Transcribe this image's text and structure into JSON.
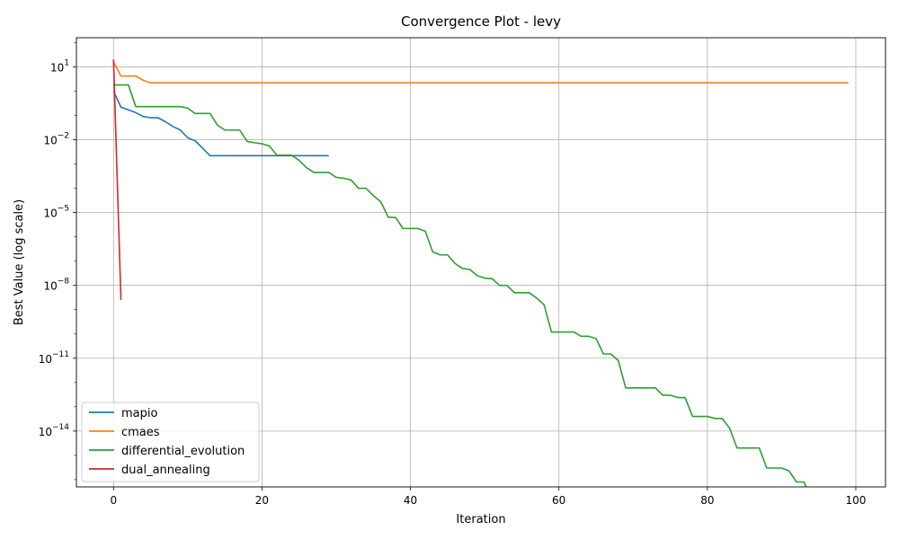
{
  "chart_data": {
    "type": "line",
    "title": "Convergence Plot - levy",
    "xlabel": "Iteration",
    "ylabel": "Best Value (log scale)",
    "yscale": "log",
    "xlim": [
      -5,
      104
    ],
    "ylim_log10": [
      -16.3,
      2.2
    ],
    "xticks": [
      0,
      20,
      40,
      60,
      80,
      100
    ],
    "xtick_labels": [
      "0",
      "20",
      "40",
      "60",
      "80",
      "100"
    ],
    "yticks_exp": [
      1,
      -2,
      -5,
      -8,
      -11,
      -14
    ],
    "ytick_labels": [
      "10^1",
      "10^−2",
      "10^−5",
      "10^−8",
      "10^−11",
      "10^−14"
    ],
    "grid": true,
    "legend_position": "lower-left",
    "series": [
      {
        "name": "mapio",
        "color": "#1f77b4",
        "x": [
          0,
          1,
          2,
          3,
          4,
          5,
          6,
          7,
          8,
          9,
          10,
          11,
          12,
          13,
          14,
          15,
          16,
          17,
          18,
          19,
          20,
          21,
          22,
          23,
          24,
          25,
          26,
          27,
          28,
          29
        ],
        "y": [
          1.0,
          0.22,
          0.17,
          0.13,
          0.09,
          0.08,
          0.08,
          0.055,
          0.035,
          0.025,
          0.012,
          0.009,
          0.0045,
          0.0022,
          0.0022,
          0.0022,
          0.0022,
          0.0022,
          0.0022,
          0.0022,
          0.0022,
          0.0022,
          0.0022,
          0.0022,
          0.0022,
          0.0022,
          0.0022,
          0.0022,
          0.0022,
          0.0022
        ]
      },
      {
        "name": "cmaes",
        "color": "#ff7f0e",
        "x": [
          0,
          1,
          2,
          3,
          4,
          5,
          99
        ],
        "y": [
          16,
          4.2,
          4.2,
          4.2,
          2.8,
          2.2,
          2.2
        ]
      },
      {
        "name": "differential_evolution",
        "color": "#2ca02c",
        "x": [
          0,
          1,
          2,
          3,
          4,
          5,
          6,
          7,
          8,
          9,
          10,
          11,
          12,
          13,
          14,
          15,
          16,
          17,
          18,
          19,
          20,
          21,
          22,
          23,
          24,
          25,
          26,
          27,
          28,
          29,
          30,
          31,
          32,
          33,
          34,
          35,
          36,
          37,
          38,
          39,
          40,
          41,
          42,
          43,
          44,
          45,
          46,
          47,
          48,
          49,
          50,
          51,
          52,
          53,
          54,
          55,
          56,
          57,
          58,
          59,
          60,
          61,
          62,
          63,
          64,
          65,
          66,
          67,
          68,
          69,
          70,
          71,
          72,
          73,
          74,
          75,
          76,
          77,
          78,
          79,
          80,
          81,
          82,
          83,
          84,
          85,
          86,
          87,
          88,
          89,
          90,
          91,
          92,
          93,
          94,
          95,
          96,
          97,
          98,
          99
        ],
        "y": [
          1.8,
          1.8,
          1.8,
          0.23,
          0.23,
          0.23,
          0.23,
          0.23,
          0.23,
          0.23,
          0.2,
          0.12,
          0.12,
          0.12,
          0.04,
          0.025,
          0.025,
          0.025,
          0.0085,
          0.0075,
          0.0068,
          0.0055,
          0.0023,
          0.0023,
          0.0023,
          0.0014,
          0.0007,
          0.00045,
          0.00045,
          0.00045,
          0.00028,
          0.00026,
          0.00022,
          0.0001,
          0.0001,
          5e-05,
          2.8e-05,
          6.5e-06,
          6.2e-06,
          2.2e-06,
          2.2e-06,
          2.2e-06,
          1.7e-06,
          2.4e-07,
          1.8e-07,
          1.8e-07,
          8e-08,
          5e-08,
          4.5e-08,
          2.5e-08,
          2e-08,
          1.9e-08,
          1e-08,
          1e-08,
          5e-09,
          5e-09,
          5e-09,
          3e-09,
          1.6e-09,
          1.2e-10,
          1.2e-10,
          1.2e-10,
          1.2e-10,
          8e-11,
          8e-11,
          6.5e-11,
          1.5e-11,
          1.5e-11,
          8e-12,
          6e-13,
          6e-13,
          6e-13,
          6e-13,
          6e-13,
          3e-13,
          3e-13,
          2.4e-13,
          2.4e-13,
          4e-14,
          4e-14,
          4e-14,
          3.3e-14,
          3.3e-14,
          1.3e-14,
          2e-15,
          2e-15,
          2e-15,
          2e-15,
          3e-16,
          3e-16,
          3e-16,
          2.3e-16,
          8e-17,
          8e-17,
          1.8e-17,
          1.8e-17,
          1.8e-17,
          9e-18,
          6.5e-18,
          6.5e-18
        ]
      },
      {
        "name": "dual_annealing",
        "color": "#d62728",
        "x": [
          0,
          1
        ],
        "y": [
          20,
          2.5e-09
        ]
      }
    ]
  }
}
